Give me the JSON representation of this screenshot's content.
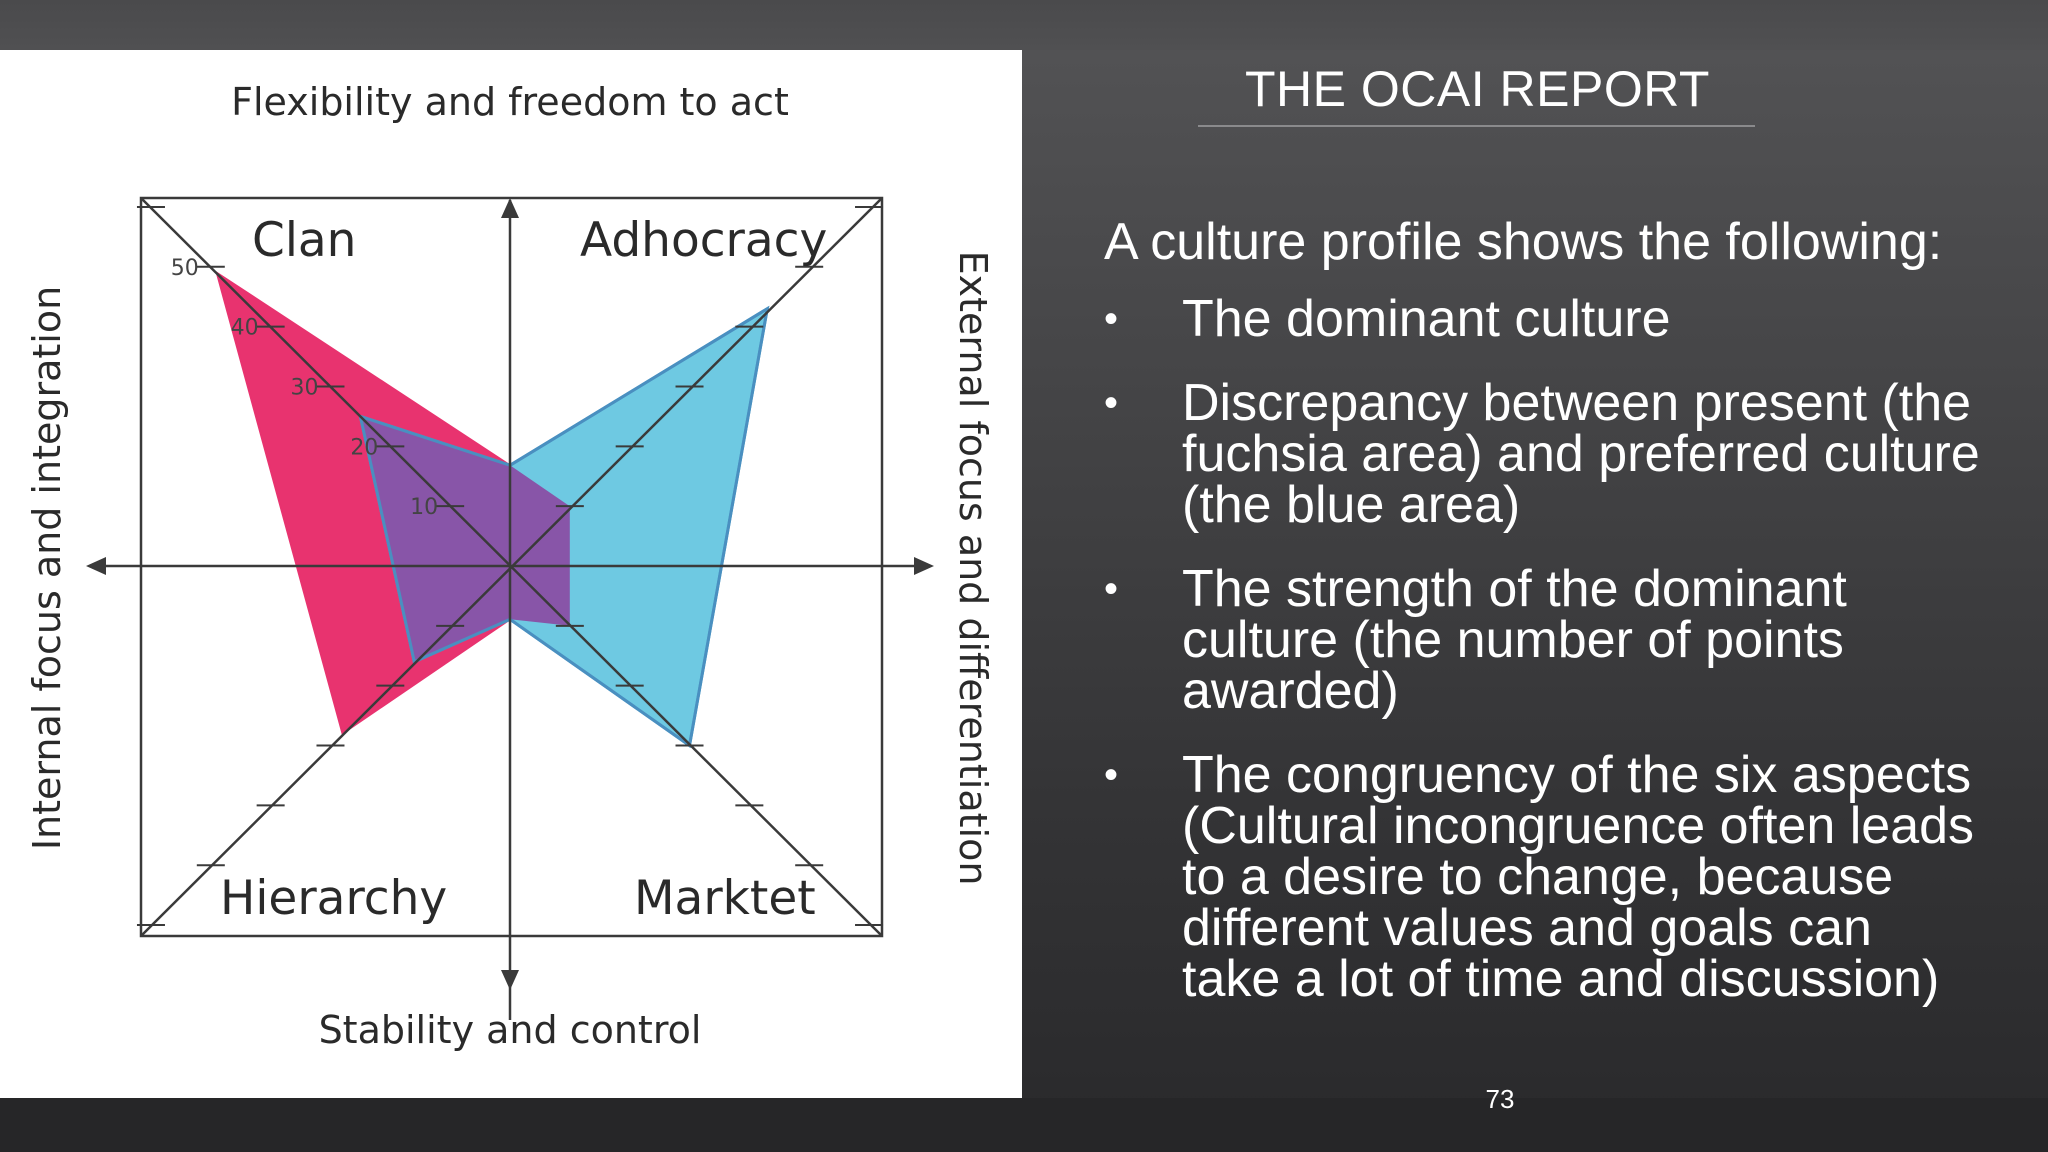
{
  "slide": {
    "title": "THE OCAI REPORT",
    "intro": "A culture profile shows the following:",
    "bullets": [
      {
        "text": "The dominant culture"
      },
      {
        "text": "Discrepancy between present (the fuchsia area) and preferred culture (the blue area)"
      },
      {
        "text": "The strength of the dominant culture (the number of points awarded)"
      },
      {
        "text": "The congruency of the six aspects (Cultural incongruence often leads to a desire to change, because different values and goals can take a lot of time and discussion)"
      }
    ],
    "bullet_symbol": "•",
    "page_number": "73"
  },
  "figure": {
    "axis_top": "Flexibility and freedom to act",
    "axis_bottom": "Stability and control",
    "axis_left": "Internal focus and integration",
    "axis_right": "External focus and differentiation",
    "quadrants": {
      "top_left": "Clan",
      "top_right": "Adhocracy",
      "bottom_left": "Hierarchy",
      "bottom_right": "Marktet"
    },
    "scale_labels": [
      "50",
      "40",
      "30",
      "20",
      "10"
    ],
    "scale_max": 50,
    "profiles": [
      {
        "area": "present",
        "color": "#e8336f",
        "values": {
          "clan": 49,
          "adhocracy": 10,
          "market": 10,
          "hierarchy": 28,
          "flexibility": 17,
          "stability": 9
        }
      },
      {
        "area": "preferred",
        "color": "#6ec9e2",
        "values": {
          "clan": 25,
          "adhocracy": 43,
          "market": 30,
          "hierarchy": 16,
          "flexibility": 17,
          "stability": 9
        }
      }
    ],
    "overlap_color": "#8855a8"
  }
}
